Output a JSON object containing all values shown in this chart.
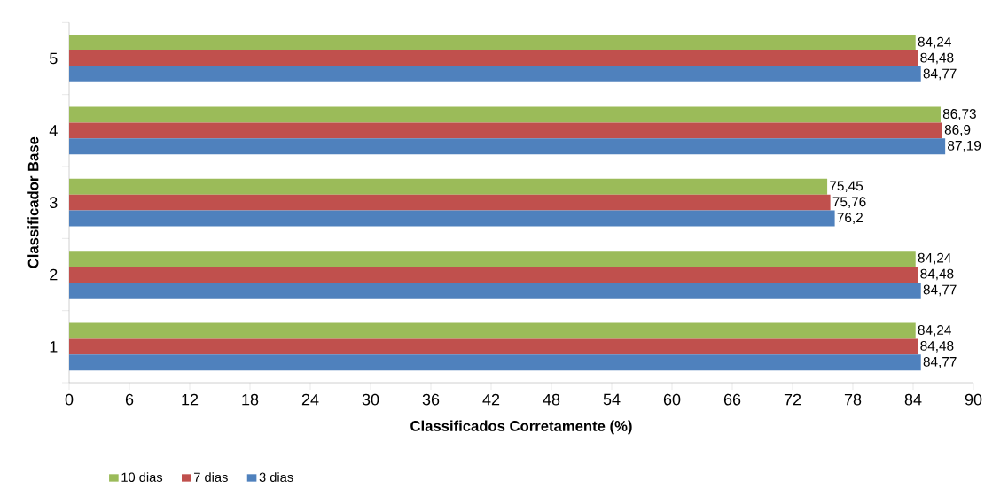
{
  "chart_data": {
    "type": "bar",
    "orientation": "horizontal",
    "categories": [
      "5",
      "4",
      "3",
      "2",
      "1"
    ],
    "xlabel": "Classificados Corretamente (%)",
    "ylabel": "Classificador Base",
    "xlim": [
      0,
      90
    ],
    "xticks": [
      0,
      6,
      12,
      18,
      24,
      30,
      36,
      42,
      48,
      54,
      60,
      66,
      72,
      78,
      84,
      90
    ],
    "legend": "bottom",
    "grid": false,
    "series": [
      {
        "name": "10 dias",
        "color": "#9bbb59",
        "values": [
          84.24,
          86.73,
          75.45,
          84.24,
          84.24
        ],
        "value_labels": [
          "84,24",
          "86,73",
          "75,45",
          "84,24",
          "84,24"
        ]
      },
      {
        "name": "7 dias",
        "color": "#c0504d",
        "values": [
          84.48,
          86.9,
          75.76,
          84.48,
          84.48
        ],
        "value_labels": [
          "84,48",
          "86,9",
          "75,76",
          "84,48",
          "84,48"
        ]
      },
      {
        "name": "3 dias",
        "color": "#4f81bd",
        "values": [
          84.77,
          87.19,
          76.2,
          84.77,
          84.77
        ],
        "value_labels": [
          "84,77",
          "87,19",
          "76,2",
          "84,77",
          "84,77"
        ]
      }
    ]
  }
}
